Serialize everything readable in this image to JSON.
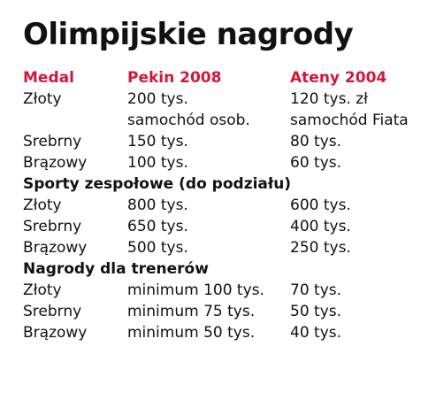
{
  "title": "Olimpijskie nagrody",
  "colors": {
    "header": "#d0183a",
    "text": "#111111",
    "background": "#ffffff"
  },
  "header": {
    "col1": "Medal",
    "col2": "Pekin 2008",
    "col3": "Ateny 2004"
  },
  "individual": [
    {
      "medal": "Złoty",
      "pekin": "200 tys.",
      "ateny": "120 tys. zł"
    },
    {
      "medal": "",
      "pekin": "samochód osob.",
      "ateny": "samochód Fiata"
    },
    {
      "medal": "Srebrny",
      "pekin": "150 tys.",
      "ateny": "80 tys."
    },
    {
      "medal": "Brązowy",
      "pekin": "100 tys.",
      "ateny": "60 tys."
    }
  ],
  "team_section": "Sporty zespołowe (do podziału)",
  "team": [
    {
      "medal": "Złoty",
      "pekin": "800 tys.",
      "ateny": "600 tys."
    },
    {
      "medal": "Srebrny",
      "pekin": "650 tys.",
      "ateny": "400 tys."
    },
    {
      "medal": "Brązowy",
      "pekin": "500 tys.",
      "ateny": "250 tys."
    }
  ],
  "coach_section": "Nagrody dla trenerów",
  "coaches": [
    {
      "medal": "Złoty",
      "pekin": "minimum 100 tys.",
      "ateny": "70 tys."
    },
    {
      "medal": "Srebrny",
      "pekin": "minimum 75 tys.",
      "ateny": "50 tys."
    },
    {
      "medal": "Brązowy",
      "pekin": "minimum 50 tys.",
      "ateny": "40 tys."
    }
  ]
}
